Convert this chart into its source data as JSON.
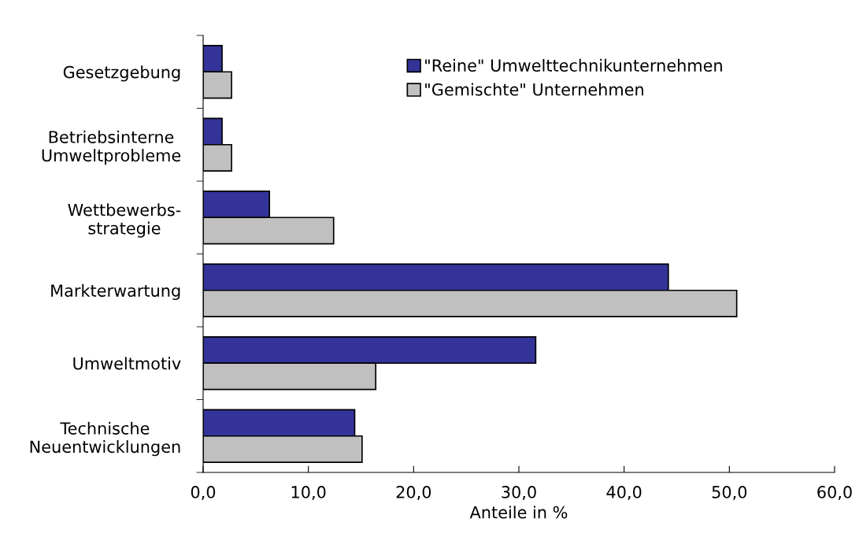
{
  "chart_data": {
    "type": "bar",
    "orientation": "horizontal",
    "xlabel": "Anteile in %",
    "categories": [
      "Gesetzgebung",
      "Betriebsinterne\nUmweltprobleme",
      "Wettbewerbs-\nstrategie",
      "Markterwartung",
      "Umweltmotiv",
      "Technische\nNeuentwicklungen"
    ],
    "series": [
      {
        "name": "\"Reine\" Umwelttechnikunternehmen",
        "color": "#333399",
        "values": [
          1.8,
          1.8,
          6.3,
          44.2,
          31.6,
          14.4
        ]
      },
      {
        "name": "\"Gemischte\" Unternehmen",
        "color": "#c0c0c0",
        "values": [
          2.7,
          2.7,
          12.4,
          50.7,
          16.4,
          15.1
        ]
      }
    ],
    "xlim": [
      0,
      60
    ],
    "xticks": [
      {
        "value": 0,
        "label": "0,0"
      },
      {
        "value": 10,
        "label": "10,0"
      },
      {
        "value": 20,
        "label": "20,0"
      },
      {
        "value": 30,
        "label": "30,0"
      },
      {
        "value": 40,
        "label": "40,0"
      },
      {
        "value": 50,
        "label": "50,0"
      },
      {
        "value": 60,
        "label": "60,0"
      }
    ],
    "grid": false,
    "legend": "top right"
  }
}
